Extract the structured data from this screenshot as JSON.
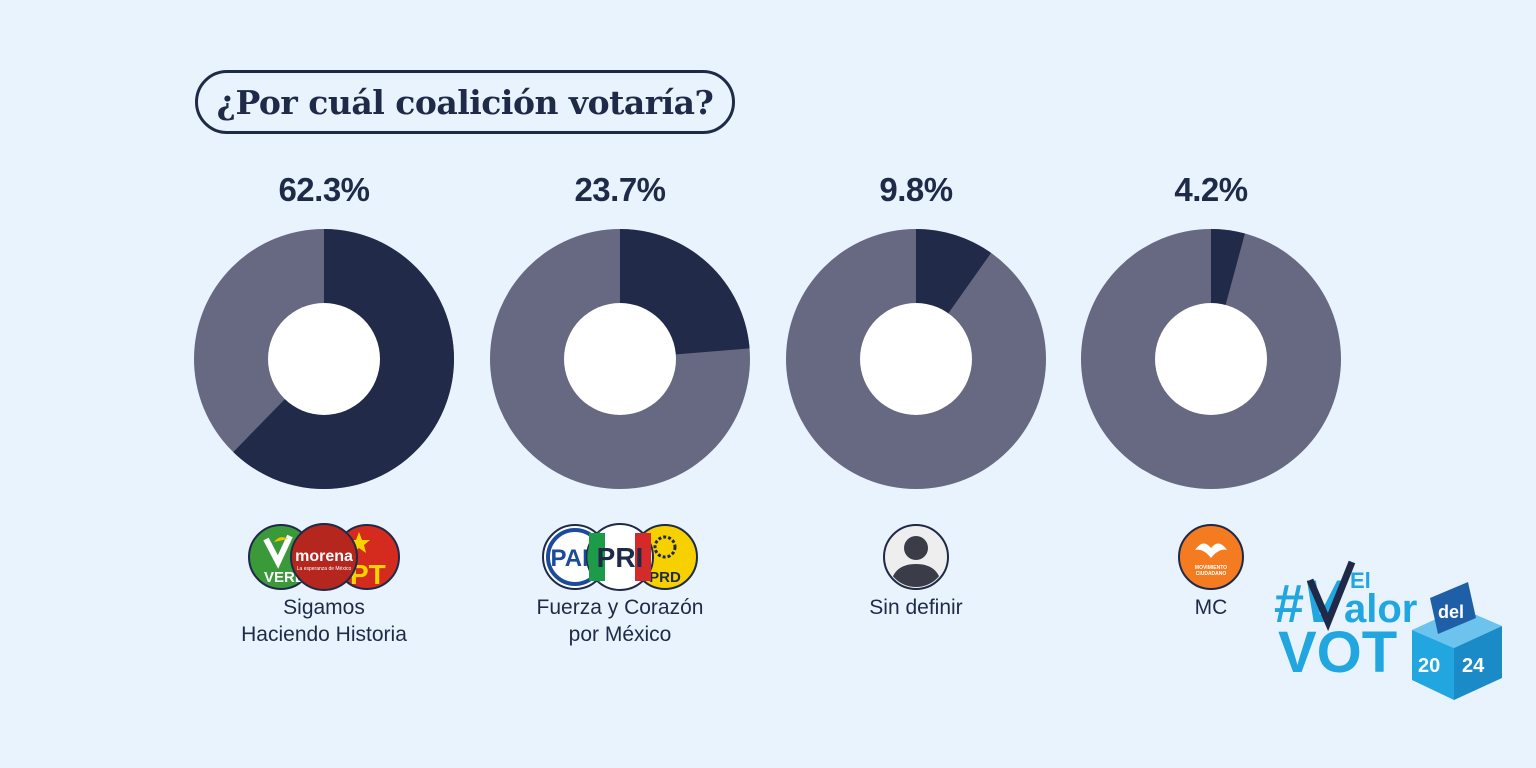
{
  "title": "¿Por cuál coalición votaría?",
  "colors": {
    "background": "#e8f3fd",
    "share": "#212a48",
    "rest": "#676881",
    "hole": "#ffffff",
    "text": "#1f2a48",
    "brand_blue": "#22a6e0"
  },
  "chart_data": {
    "type": "pie",
    "variant": "donut",
    "title": "¿Por cuál coalición votaría?",
    "categories": [
      "Sigamos Haciendo Historia",
      "Fuerza y Corazón por México",
      "Sin definir",
      "MC"
    ],
    "values": [
      62.3,
      23.7,
      9.8,
      4.2
    ],
    "unit": "%"
  },
  "items": [
    {
      "pct_label": "62.3%",
      "value": 62.3,
      "label_lines": [
        "Sigamos",
        "Haciendo Historia"
      ],
      "logos": [
        "PVEM",
        "morena",
        "PT"
      ]
    },
    {
      "pct_label": "23.7%",
      "value": 23.7,
      "label_lines": [
        "Fuerza y Corazón",
        "por México"
      ],
      "logos": [
        "PAN",
        "PRI",
        "PRD"
      ]
    },
    {
      "pct_label": "9.8%",
      "value": 9.8,
      "label_lines": [
        "Sin definir"
      ],
      "logos": [
        "person"
      ]
    },
    {
      "pct_label": "4.2%",
      "value": 4.2,
      "label_lines": [
        "MC"
      ],
      "logos": [
        "MC"
      ]
    }
  ],
  "logo_text": {
    "verde": "VERDE",
    "morena": "morena",
    "morena_tag": "La esperanza de México",
    "pt": "PT",
    "pan": "PAN",
    "pri": "PRI",
    "prd": "PRD",
    "mc_line1": "MOVIMIENTO",
    "mc_line2": "CIUDADANO"
  },
  "brand": {
    "hash": "#",
    "v": "V",
    "el": "El",
    "alor": "alor",
    "del": "del",
    "vot": "VOT",
    "year_a": "20",
    "year_b": "24"
  }
}
